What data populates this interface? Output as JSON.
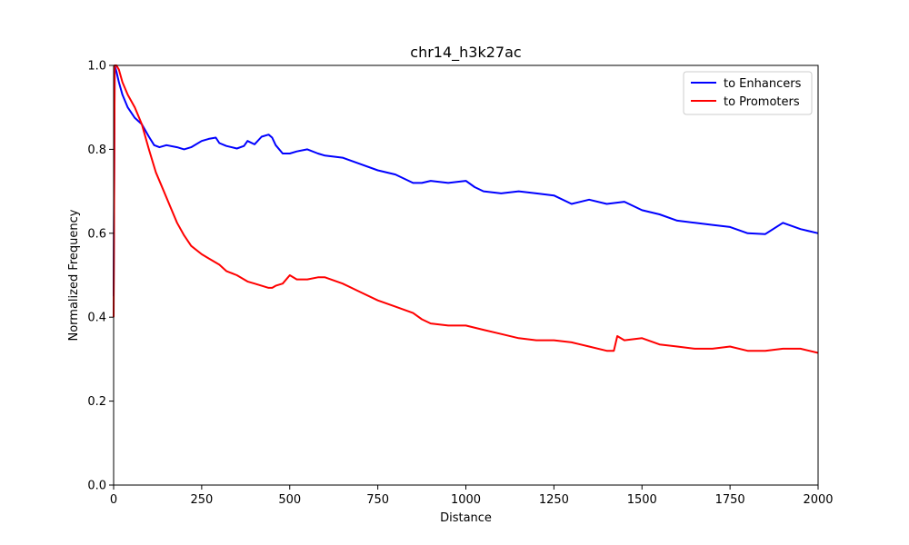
{
  "chart_data": {
    "type": "line",
    "title": "chr14_h3k27ac",
    "xlabel": "Distance",
    "ylabel": "Normalized Frequency",
    "xlim": [
      0,
      2000
    ],
    "ylim": [
      0.0,
      1.0
    ],
    "x_ticks": [
      "0",
      "250",
      "500",
      "750",
      "1000",
      "1250",
      "1500",
      "1750",
      "2000"
    ],
    "y_ticks": [
      "0.0",
      "0.2",
      "0.4",
      "0.6",
      "0.8",
      "1.0"
    ],
    "grid": false,
    "legend_position": "top-right",
    "series": [
      {
        "name": "to Enhancers",
        "color": "#0000ff",
        "x": [
          0,
          3,
          8,
          15,
          25,
          40,
          60,
          80,
          100,
          115,
          130,
          150,
          180,
          200,
          220,
          250,
          270,
          290,
          300,
          320,
          350,
          370,
          380,
          400,
          420,
          440,
          450,
          460,
          480,
          500,
          520,
          550,
          580,
          600,
          650,
          700,
          750,
          800,
          850,
          875,
          900,
          950,
          1000,
          1025,
          1050,
          1100,
          1150,
          1200,
          1250,
          1300,
          1350,
          1400,
          1450,
          1500,
          1550,
          1600,
          1650,
          1700,
          1750,
          1800,
          1850,
          1900,
          1950,
          2000
        ],
        "y": [
          0.45,
          1.0,
          0.985,
          0.96,
          0.93,
          0.9,
          0.875,
          0.86,
          0.83,
          0.81,
          0.805,
          0.81,
          0.805,
          0.8,
          0.805,
          0.82,
          0.825,
          0.828,
          0.815,
          0.808,
          0.802,
          0.808,
          0.82,
          0.812,
          0.83,
          0.835,
          0.828,
          0.81,
          0.79,
          0.79,
          0.795,
          0.8,
          0.79,
          0.785,
          0.78,
          0.765,
          0.75,
          0.74,
          0.72,
          0.72,
          0.725,
          0.72,
          0.725,
          0.71,
          0.7,
          0.695,
          0.7,
          0.695,
          0.69,
          0.67,
          0.68,
          0.67,
          0.675,
          0.655,
          0.645,
          0.63,
          0.625,
          0.62,
          0.615,
          0.6,
          0.598,
          0.625,
          0.61,
          0.6
        ]
      },
      {
        "name": "to Promoters",
        "color": "#ff0000",
        "x": [
          0,
          3,
          8,
          15,
          25,
          40,
          60,
          80,
          100,
          120,
          140,
          160,
          180,
          200,
          220,
          250,
          270,
          300,
          320,
          350,
          380,
          400,
          420,
          440,
          450,
          460,
          480,
          500,
          520,
          550,
          580,
          600,
          650,
          700,
          750,
          800,
          850,
          875,
          900,
          950,
          1000,
          1050,
          1100,
          1150,
          1200,
          1250,
          1300,
          1350,
          1400,
          1420,
          1430,
          1450,
          1500,
          1550,
          1600,
          1650,
          1700,
          1750,
          1800,
          1850,
          1900,
          1950,
          2000
        ],
        "y": [
          0.4,
          1.0,
          1.0,
          0.99,
          0.96,
          0.93,
          0.9,
          0.86,
          0.8,
          0.745,
          0.705,
          0.665,
          0.625,
          0.595,
          0.57,
          0.55,
          0.54,
          0.525,
          0.51,
          0.5,
          0.485,
          0.48,
          0.475,
          0.47,
          0.47,
          0.475,
          0.48,
          0.5,
          0.49,
          0.49,
          0.495,
          0.495,
          0.48,
          0.46,
          0.44,
          0.425,
          0.41,
          0.395,
          0.385,
          0.38,
          0.38,
          0.37,
          0.36,
          0.35,
          0.345,
          0.345,
          0.34,
          0.33,
          0.32,
          0.32,
          0.355,
          0.345,
          0.35,
          0.335,
          0.33,
          0.325,
          0.325,
          0.33,
          0.32,
          0.32,
          0.325,
          0.325,
          0.315
        ]
      }
    ]
  }
}
